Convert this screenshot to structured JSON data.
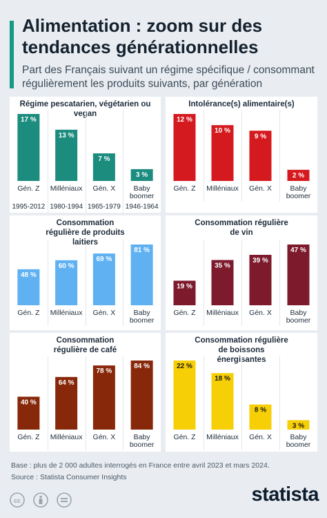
{
  "header": {
    "title": "Alimentation : zoom sur des tendances générationnelles",
    "subtitle": "Part des Français suivant un régime spécifique / consommant régulièrement les produits suivants, par génération"
  },
  "chart_data": [
    {
      "type": "bar",
      "title": "Régime pescatarien, végétarien ou vegan",
      "categories": [
        "Gén. Z",
        "Milléniaux",
        "Gén. X",
        "Baby boomer"
      ],
      "sub_labels": [
        "1995-2012",
        "1980-1994",
        "1965-1979",
        "1946-1964"
      ],
      "values": [
        17,
        13,
        7,
        3
      ],
      "value_labels": [
        "17 %",
        "13 %",
        "7 %",
        "3 %"
      ],
      "ylim": [
        0,
        17
      ],
      "color": "#1b8c7e"
    },
    {
      "type": "bar",
      "title": "Intolérance(s) alimentaire(s)",
      "categories": [
        "Gén. Z",
        "Milléniaux",
        "Gén. X",
        "Baby boomer"
      ],
      "values": [
        12,
        10,
        9,
        2
      ],
      "value_labels": [
        "12 %",
        "10 %",
        "9 %",
        "2 %"
      ],
      "ylim": [
        0,
        12
      ],
      "color": "#d51a1f"
    },
    {
      "type": "bar",
      "title": "Consommation régulière de produits laitiers",
      "categories": [
        "Gén. Z",
        "Milléniaux",
        "Gén. X",
        "Baby boomer"
      ],
      "values": [
        48,
        60,
        69,
        81
      ],
      "value_labels": [
        "48 %",
        "60 %",
        "69 %",
        "81 %"
      ],
      "ylim": [
        0,
        81
      ],
      "color": "#5fb1f2"
    },
    {
      "type": "bar",
      "title": "Consommation régulière de vin",
      "categories": [
        "Gén. Z",
        "Milléniaux",
        "Gén. X",
        "Baby boomer"
      ],
      "values": [
        19,
        35,
        39,
        47
      ],
      "value_labels": [
        "19 %",
        "35 %",
        "39 %",
        "47 %"
      ],
      "ylim": [
        0,
        47
      ],
      "color": "#7d1a2c"
    },
    {
      "type": "bar",
      "title": "Consommation régulière de café",
      "categories": [
        "Gén. Z",
        "Milléniaux",
        "Gén. X",
        "Baby boomer"
      ],
      "values": [
        40,
        64,
        78,
        84
      ],
      "value_labels": [
        "40 %",
        "64 %",
        "78 %",
        "84 %"
      ],
      "ylim": [
        0,
        84
      ],
      "color": "#88280a"
    },
    {
      "type": "bar",
      "title": "Consommation régulière de boissons énergisantes",
      "categories": [
        "Gén. Z",
        "Milléniaux",
        "Gén. X",
        "Baby boomer"
      ],
      "values": [
        22,
        18,
        8,
        3
      ],
      "value_labels": [
        "22 %",
        "18 %",
        "8 %",
        "3 %"
      ],
      "ylim": [
        0,
        22
      ],
      "color": "#f6cf06"
    }
  ],
  "footer": {
    "base": "Base : plus de 2 000 adultes interrogés en France entre avril 2023 et mars 2024.",
    "source": "Source : Statista Consumer Insights",
    "logo": "statista",
    "license_icons": [
      "cc-icon",
      "by-icon",
      "nd-icon"
    ]
  }
}
